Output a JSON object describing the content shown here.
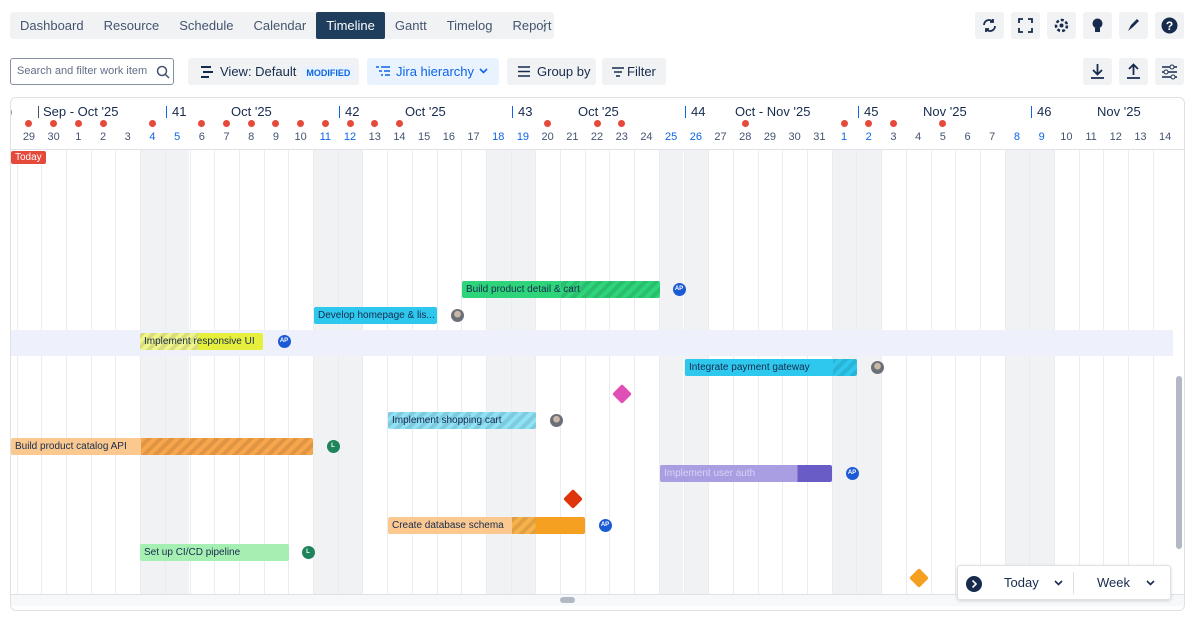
{
  "nav": {
    "tabs": [
      "Dashboard",
      "Resource",
      "Schedule",
      "Calendar",
      "Timeline",
      "Gantt",
      "Timelog",
      "Report"
    ],
    "active": 4
  },
  "toolbar": {
    "search_placeholder": "Search and filter work item",
    "view": "View: Default",
    "view_badge": "MODIFIED",
    "hierarchy": "Jira hierarchy",
    "group_by": "Group by",
    "filter": "Filter"
  },
  "timeline": {
    "lead": ")",
    "periods": [
      "Sep - Oct '25",
      "Oct '25",
      "Oct '25",
      "Oct '25",
      "Oct - Nov '25",
      "Nov '25",
      "Nov '25"
    ],
    "weeks": [
      "41",
      "42",
      "43",
      "44",
      "45",
      "46"
    ],
    "days": [
      {
        "label": "29",
        "weekend": false,
        "dot": true
      },
      {
        "label": "30",
        "weekend": false,
        "dot": true
      },
      {
        "label": "1",
        "weekend": false,
        "dot": true
      },
      {
        "label": "2",
        "weekend": false,
        "dot": true
      },
      {
        "label": "3",
        "weekend": false,
        "dot": false
      },
      {
        "label": "4",
        "weekend": true,
        "dot": true
      },
      {
        "label": "5",
        "weekend": true,
        "dot": false
      },
      {
        "label": "6",
        "weekend": false,
        "dot": true
      },
      {
        "label": "7",
        "weekend": false,
        "dot": true
      },
      {
        "label": "8",
        "weekend": false,
        "dot": true
      },
      {
        "label": "9",
        "weekend": false,
        "dot": true
      },
      {
        "label": "10",
        "weekend": false,
        "dot": true
      },
      {
        "label": "11",
        "weekend": true,
        "dot": true
      },
      {
        "label": "12",
        "weekend": true,
        "dot": true
      },
      {
        "label": "13",
        "weekend": false,
        "dot": true
      },
      {
        "label": "14",
        "weekend": false,
        "dot": true
      },
      {
        "label": "15",
        "weekend": false,
        "dot": false
      },
      {
        "label": "16",
        "weekend": false,
        "dot": false
      },
      {
        "label": "17",
        "weekend": false,
        "dot": false
      },
      {
        "label": "18",
        "weekend": true,
        "dot": false
      },
      {
        "label": "19",
        "weekend": true,
        "dot": false
      },
      {
        "label": "20",
        "weekend": false,
        "dot": true
      },
      {
        "label": "21",
        "weekend": false,
        "dot": false
      },
      {
        "label": "22",
        "weekend": false,
        "dot": true
      },
      {
        "label": "23",
        "weekend": false,
        "dot": true
      },
      {
        "label": "24",
        "weekend": false,
        "dot": false
      },
      {
        "label": "25",
        "weekend": true,
        "dot": false
      },
      {
        "label": "26",
        "weekend": true,
        "dot": false
      },
      {
        "label": "27",
        "weekend": false,
        "dot": false
      },
      {
        "label": "28",
        "weekend": false,
        "dot": true
      },
      {
        "label": "29",
        "weekend": false,
        "dot": false
      },
      {
        "label": "30",
        "weekend": false,
        "dot": false
      },
      {
        "label": "31",
        "weekend": false,
        "dot": false
      },
      {
        "label": "1",
        "weekend": true,
        "dot": true
      },
      {
        "label": "2",
        "weekend": true,
        "dot": true
      },
      {
        "label": "3",
        "weekend": false,
        "dot": true
      },
      {
        "label": "4",
        "weekend": false,
        "dot": false
      },
      {
        "label": "5",
        "weekend": false,
        "dot": true
      },
      {
        "label": "6",
        "weekend": false,
        "dot": false
      },
      {
        "label": "7",
        "weekend": false,
        "dot": false
      },
      {
        "label": "8",
        "weekend": true,
        "dot": false
      },
      {
        "label": "9",
        "weekend": true,
        "dot": false
      },
      {
        "label": "10",
        "weekend": false,
        "dot": false
      },
      {
        "label": "11",
        "weekend": false,
        "dot": false
      },
      {
        "label": "12",
        "weekend": false,
        "dot": false
      },
      {
        "label": "13",
        "weekend": false,
        "dot": false
      },
      {
        "label": "14",
        "weekend": false,
        "dot": false
      }
    ],
    "today": "Today",
    "tasks": [
      {
        "label": "Build product detail & cart",
        "avatar": "AP"
      },
      {
        "label": "Develop homepage & lis..."
      },
      {
        "label": "Implement responsive UI",
        "avatar": "AP"
      },
      {
        "label": "Integrate payment gateway"
      },
      {
        "label": "Implement shopping cart"
      },
      {
        "label": "Build product catalog API",
        "avatar": "L"
      },
      {
        "label": "Implement user auth",
        "avatar": "AP"
      },
      {
        "label": "Create database schema",
        "avatar": "AP"
      },
      {
        "label": "Set up CI/CD pipeline",
        "avatar": "L"
      }
    ]
  },
  "footer": {
    "today": "Today",
    "scale": "Week"
  }
}
